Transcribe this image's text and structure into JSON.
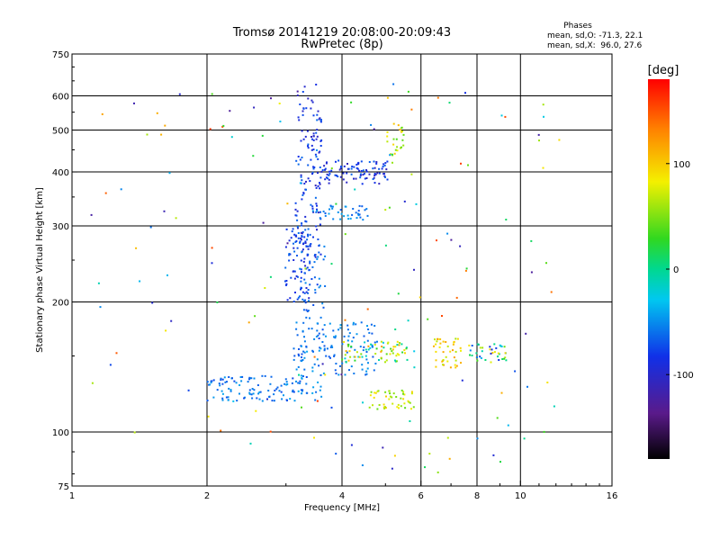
{
  "chart_data": {
    "type": "scatter",
    "title": "Tromsø 20141219 20:08:00-20:09:43",
    "subtitle": "RwPretec (8p)",
    "xlabel": "Frequency [MHz]",
    "ylabel": "Stationary phase Virtual Height [km]",
    "x_scale": "log",
    "y_scale": "log",
    "xlim": [
      1,
      16
    ],
    "ylim": [
      75,
      750
    ],
    "x_ticks": [
      1,
      2,
      4,
      6,
      8,
      10,
      16
    ],
    "y_ticks": [
      75,
      100,
      200,
      300,
      400,
      500,
      600,
      750
    ],
    "x_gridlines": [
      2,
      4,
      6,
      8,
      10
    ],
    "y_gridlines": [
      100,
      200,
      300,
      400,
      500,
      600
    ],
    "grid": true,
    "phases_box": {
      "title": "Phases",
      "line_o": "mean, sd,O: -71.3, 22.1",
      "line_x": "mean, sd,X:  96.0, 27.6"
    },
    "colorbar": {
      "label": "[deg]",
      "range": [
        -180,
        180
      ],
      "ticks": [
        100,
        0,
        -100
      ],
      "placement": "right"
    },
    "clusters": [
      {
        "x": [
          3.15,
          3.6
        ],
        "y": [
          250,
          640
        ],
        "phase": [
          -110,
          -60
        ],
        "n": 140
      },
      {
        "x": [
          3.0,
          3.4
        ],
        "y": [
          190,
          300
        ],
        "phase": [
          -100,
          -60
        ],
        "n": 70
      },
      {
        "x": [
          3.2,
          3.7
        ],
        "y": [
          150,
          300
        ],
        "phase": [
          -75,
          -50
        ],
        "n": 70
      },
      {
        "x": [
          3.6,
          5.1
        ],
        "y": [
          375,
          425
        ],
        "phase": [
          -110,
          -60
        ],
        "n": 90
      },
      {
        "x": [
          3.5,
          4.6
        ],
        "y": [
          310,
          335
        ],
        "phase": [
          -70,
          -40
        ],
        "n": 40
      },
      {
        "x": [
          2.0,
          3.6
        ],
        "y": [
          118,
          135
        ],
        "phase": [
          -75,
          -40
        ],
        "n": 120
      },
      {
        "x": [
          3.1,
          4.8
        ],
        "y": [
          135,
          180
        ],
        "phase": [
          -70,
          -40
        ],
        "n": 110
      },
      {
        "x": [
          4.0,
          5.8
        ],
        "y": [
          145,
          162
        ],
        "phase": [
          -30,
          120
        ],
        "n": 70
      },
      {
        "x": [
          4.6,
          5.8
        ],
        "y": [
          113,
          125
        ],
        "phase": [
          40,
          100
        ],
        "n": 45
      },
      {
        "x": [
          6.4,
          7.4
        ],
        "y": [
          140,
          165
        ],
        "phase": [
          60,
          120
        ],
        "n": 40
      },
      {
        "x": [
          7.6,
          9.3
        ],
        "y": [
          145,
          160
        ],
        "phase": [
          -100,
          100
        ],
        "n": 40
      },
      {
        "x": [
          5.0,
          5.5
        ],
        "y": [
          400,
          520
        ],
        "phase": [
          40,
          110
        ],
        "n": 25
      },
      {
        "x": [
          1.1,
          12.5
        ],
        "y": [
          80,
          650
        ],
        "phase": [
          -130,
          160
        ],
        "n": 160
      }
    ]
  }
}
